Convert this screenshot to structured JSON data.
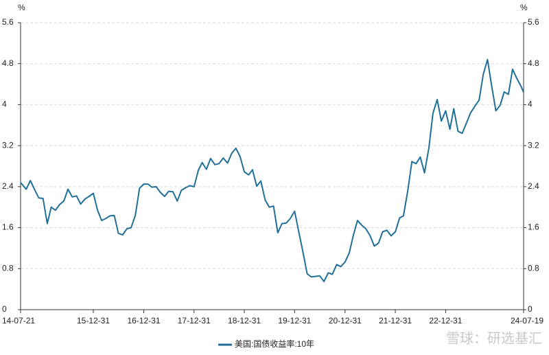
{
  "chart_data": {
    "type": "line",
    "y_label": "%",
    "watermark": "雪球：研选基汇",
    "x": [
      "2014-07-21",
      "2014-08-31",
      "2014-09-30",
      "2014-10-31",
      "2014-11-30",
      "2014-12-31",
      "2015-01-31",
      "2015-02-28",
      "2015-03-31",
      "2015-04-30",
      "2015-05-31",
      "2015-06-30",
      "2015-07-31",
      "2015-08-31",
      "2015-09-30",
      "2015-10-31",
      "2015-11-30",
      "2015-12-31",
      "2016-01-31",
      "2016-02-29",
      "2016-03-31",
      "2016-04-30",
      "2016-05-31",
      "2016-06-30",
      "2016-07-31",
      "2016-08-31",
      "2016-09-30",
      "2016-10-31",
      "2016-11-30",
      "2016-12-31",
      "2017-01-31",
      "2017-02-28",
      "2017-03-31",
      "2017-04-30",
      "2017-05-31",
      "2017-06-30",
      "2017-07-31",
      "2017-08-31",
      "2017-09-30",
      "2017-10-31",
      "2017-11-30",
      "2017-12-31",
      "2018-01-31",
      "2018-02-28",
      "2018-03-31",
      "2018-04-30",
      "2018-05-31",
      "2018-06-30",
      "2018-07-31",
      "2018-08-31",
      "2018-09-30",
      "2018-10-31",
      "2018-11-30",
      "2018-12-31",
      "2019-01-31",
      "2019-02-28",
      "2019-03-31",
      "2019-04-30",
      "2019-05-31",
      "2019-06-30",
      "2019-07-31",
      "2019-08-31",
      "2019-09-30",
      "2019-10-31",
      "2019-11-30",
      "2019-12-31",
      "2020-01-31",
      "2020-02-29",
      "2020-03-31",
      "2020-04-30",
      "2020-05-31",
      "2020-06-30",
      "2020-07-31",
      "2020-08-31",
      "2020-09-30",
      "2020-10-31",
      "2020-11-30",
      "2020-12-31",
      "2021-01-31",
      "2021-02-28",
      "2021-03-31",
      "2021-04-30",
      "2021-05-31",
      "2021-06-30",
      "2021-07-31",
      "2021-08-31",
      "2021-09-30",
      "2021-10-31",
      "2021-11-30",
      "2021-12-31",
      "2022-01-31",
      "2022-02-28",
      "2022-03-31",
      "2022-04-30",
      "2022-05-31",
      "2022-06-30",
      "2022-07-31",
      "2022-08-31",
      "2022-09-30",
      "2022-10-31",
      "2022-11-30",
      "2022-12-31",
      "2023-01-31",
      "2023-02-28",
      "2023-03-31",
      "2023-04-30",
      "2023-05-31",
      "2023-06-30",
      "2023-07-31",
      "2023-08-31",
      "2023-09-30",
      "2023-10-31",
      "2023-11-30",
      "2023-12-31",
      "2024-01-31",
      "2024-02-29",
      "2024-03-31",
      "2024-04-30",
      "2024-05-31",
      "2024-06-30",
      "2024-07-19"
    ],
    "series": [
      {
        "name": "美国:国债收益率:10年",
        "color": "#1f6f99",
        "values": [
          2.48,
          2.35,
          2.52,
          2.34,
          2.18,
          2.17,
          1.68,
          2.0,
          1.94,
          2.05,
          2.12,
          2.35,
          2.2,
          2.22,
          2.06,
          2.16,
          2.21,
          2.27,
          1.94,
          1.74,
          1.78,
          1.83,
          1.84,
          1.49,
          1.46,
          1.58,
          1.6,
          1.84,
          2.37,
          2.45,
          2.45,
          2.39,
          2.4,
          2.29,
          2.21,
          2.31,
          2.3,
          2.12,
          2.33,
          2.38,
          2.42,
          2.4,
          2.72,
          2.87,
          2.74,
          2.95,
          2.83,
          2.85,
          2.96,
          2.86,
          3.05,
          3.15,
          2.99,
          2.69,
          2.63,
          2.73,
          2.41,
          2.51,
          2.14,
          2.0,
          2.02,
          1.5,
          1.68,
          1.69,
          1.78,
          1.92,
          1.51,
          1.13,
          0.7,
          0.64,
          0.65,
          0.66,
          0.55,
          0.72,
          0.69,
          0.88,
          0.84,
          0.93,
          1.11,
          1.44,
          1.74,
          1.65,
          1.58,
          1.45,
          1.24,
          1.3,
          1.52,
          1.55,
          1.44,
          1.52,
          1.79,
          1.83,
          2.32,
          2.89,
          2.85,
          2.98,
          2.67,
          3.15,
          3.83,
          4.1,
          3.68,
          3.88,
          3.52,
          3.92,
          3.48,
          3.44,
          3.64,
          3.84,
          3.97,
          4.09,
          4.59,
          4.88,
          4.37,
          3.88,
          3.99,
          4.25,
          4.2,
          4.69,
          4.51,
          4.36,
          4.24
        ]
      }
    ],
    "xlim": [
      "2014-07-21",
      "2024-07-19"
    ],
    "xticks": [
      {
        "value": "2014-07-21",
        "label": "14-07-21"
      },
      {
        "value": "2015-12-31",
        "label": "15-12-31"
      },
      {
        "value": "2016-12-31",
        "label": "16-12-31"
      },
      {
        "value": "2017-12-31",
        "label": "17-12-31"
      },
      {
        "value": "2018-12-31",
        "label": "18-12-31"
      },
      {
        "value": "2019-12-31",
        "label": "19-12-31"
      },
      {
        "value": "2020-12-31",
        "label": "20-12-31"
      },
      {
        "value": "2021-12-31",
        "label": "21-12-31"
      },
      {
        "value": "2022-12-31",
        "label": "22-12-31"
      },
      {
        "value": "2024-07-19",
        "label": "24-07-19"
      }
    ],
    "ylim": [
      0,
      5.6
    ],
    "yticks": [
      0,
      0.8,
      1.6,
      2.4,
      3.2,
      4,
      4.8,
      5.6
    ],
    "grid": true
  }
}
